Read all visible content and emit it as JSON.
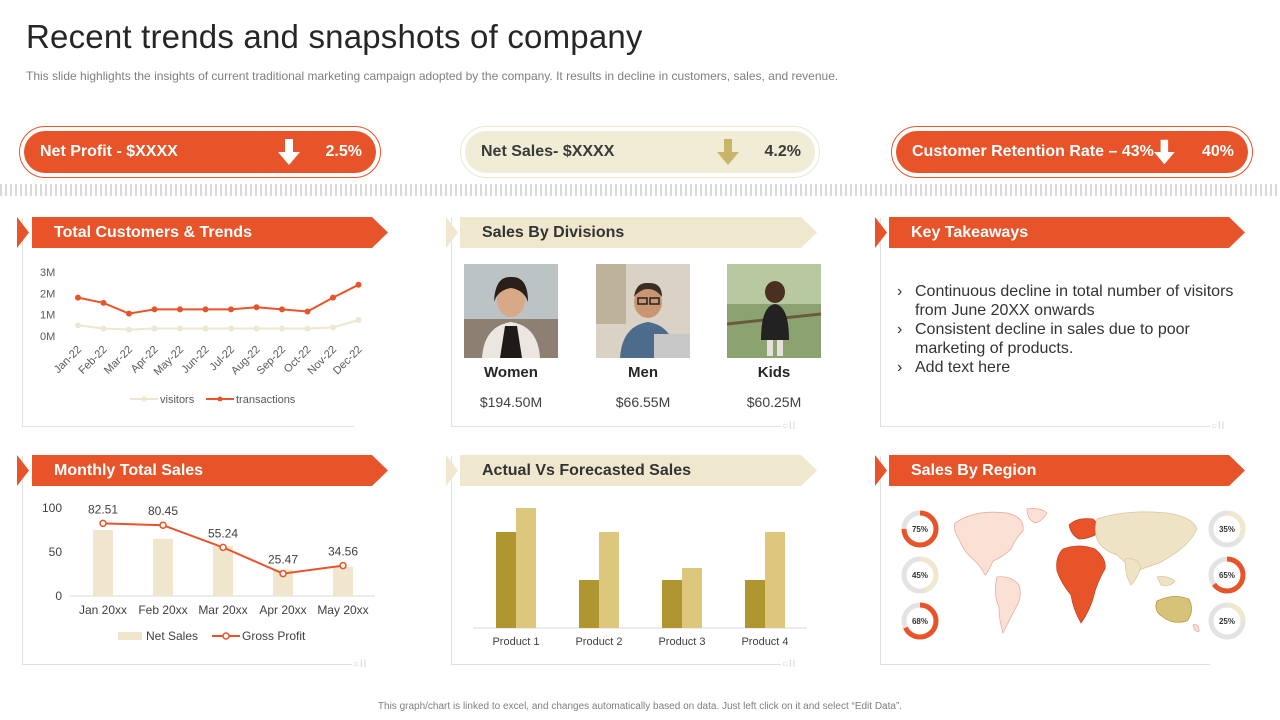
{
  "title": "Recent trends and snapshots of company",
  "subtitle": "This slide highlights the  insights of current traditional  marketing campaign adopted by the company. It results in decline in customers, sales, and revenue.",
  "kpis": {
    "net_profit": {
      "label": "Net Profit - $XXXX",
      "pct": "2.5%",
      "icon": "arrow-down-icon"
    },
    "net_sales": {
      "label": "Net Sales- $XXXX",
      "pct": "4.2%",
      "icon": "arrow-down-icon"
    },
    "retention": {
      "label": "Customer Retention Rate – 43%",
      "pct": "40%",
      "icon": "arrow-down-icon"
    }
  },
  "panels": {
    "customers": "Total Customers & Trends",
    "divisions": "Sales By Divisions",
    "takeaways": "Key Takeaways",
    "monthly": "Monthly Total Sales",
    "forecast": "Actual Vs Forecasted Sales",
    "region": "Sales By Region"
  },
  "divisions": [
    {
      "name": "Women",
      "value": "$194.50M"
    },
    {
      "name": "Men",
      "value": "$66.55M"
    },
    {
      "name": "Kids",
      "value": "$60.25M"
    }
  ],
  "takeaways": [
    "Continuous decline in total number of visitors from June 20XX onwards",
    "Consistent decline in sales due to poor marketing of products.",
    "Add text here"
  ],
  "footer": "This graph/chart is linked to excel, and changes automatically based on data. Just left click on it and select “Edit Data”.",
  "colors": {
    "accent": "#e8542a",
    "beige": "#efe8cf",
    "bar_dark": "#b09630",
    "bar_light": "#ddc77c",
    "bar_pale": "#efe6cd"
  },
  "chart_data": [
    {
      "type": "line",
      "categories": [
        "Jan-22",
        "Feb-22",
        "Mar-22",
        "Apr-22",
        "May-22",
        "Jun-22",
        "Jul-22",
        "Aug-22",
        "Sep-22",
        "Oct-22",
        "Nov-22",
        "Dec-22"
      ],
      "series": [
        {
          "name": "visitors",
          "values": [
            0.5,
            0.35,
            0.3,
            0.35,
            0.35,
            0.35,
            0.35,
            0.35,
            0.35,
            0.35,
            0.4,
            0.75
          ]
        },
        {
          "name": "transactions",
          "values": [
            1.8,
            1.55,
            1.05,
            1.25,
            1.25,
            1.25,
            1.25,
            1.35,
            1.25,
            1.15,
            1.8,
            2.4
          ]
        }
      ],
      "yticks": [
        "3M",
        "2M",
        "1M",
        "0M"
      ],
      "ylim": [
        0,
        3
      ]
    },
    {
      "type": "bar",
      "categories": [
        "Jan 20xx",
        "Feb 20xx",
        "Mar 20xx",
        "Apr 20xx",
        "May 20xx"
      ],
      "series": [
        {
          "name": "Net Sales",
          "type": "bar",
          "values": [
            75,
            65,
            57,
            30,
            33
          ]
        },
        {
          "name": "Gross Profit",
          "type": "line",
          "values": [
            82.51,
            80.45,
            55.24,
            25.47,
            34.56
          ]
        }
      ],
      "yticks": [
        "100",
        "50",
        "0"
      ],
      "ylim": [
        0,
        100
      ]
    },
    {
      "type": "bar",
      "categories": [
        "Product 1",
        "Product 2",
        "Product 3",
        "Product 4"
      ],
      "series": [
        {
          "values": [
            4,
            2,
            2,
            2
          ]
        },
        {
          "values": [
            5,
            4,
            2.5,
            4
          ]
        }
      ],
      "ylim": [
        0,
        5
      ]
    },
    {
      "type": "pie",
      "region_donuts": [
        {
          "label": "75%",
          "value": 75,
          "side": "left"
        },
        {
          "label": "45%",
          "value": 45,
          "side": "left"
        },
        {
          "label": "68%",
          "value": 68,
          "side": "left"
        },
        {
          "label": "35%",
          "value": 35,
          "side": "right"
        },
        {
          "label": "65%",
          "value": 65,
          "side": "right"
        },
        {
          "label": "25%",
          "value": 25,
          "side": "right"
        }
      ]
    }
  ]
}
